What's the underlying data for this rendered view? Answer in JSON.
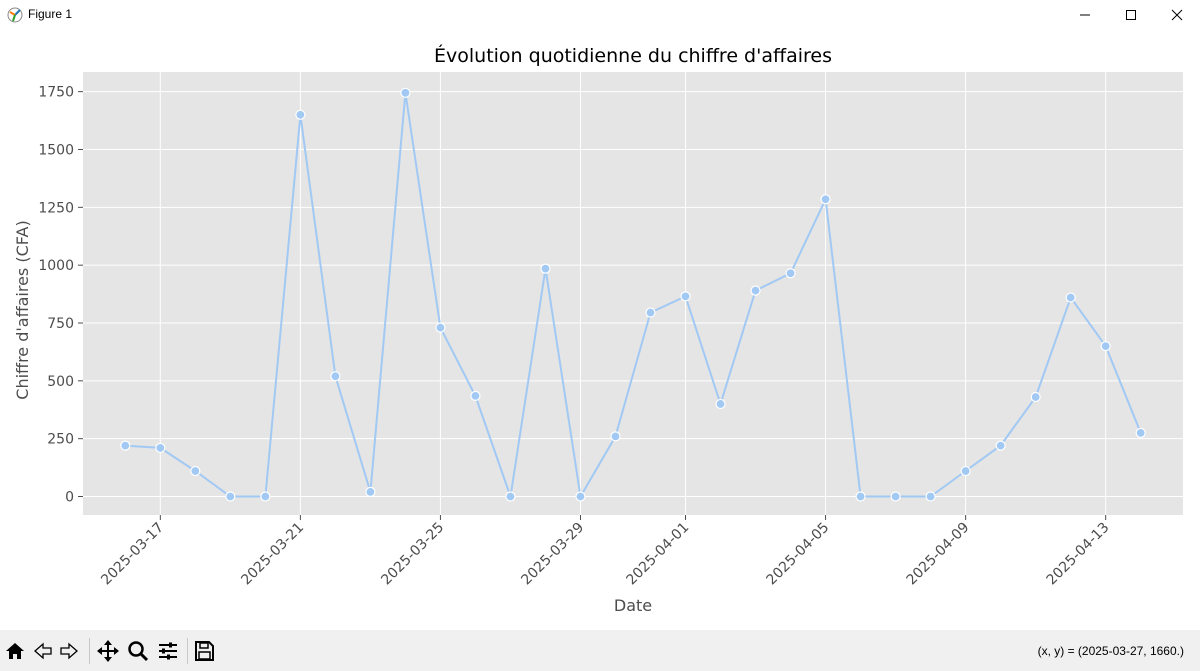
{
  "window": {
    "title": "Figure 1",
    "minimize_icon": "minimize-icon",
    "maximize_icon": "maximize-icon",
    "close_icon": "close-icon"
  },
  "toolbar": {
    "items": [
      "home-icon",
      "back-icon",
      "forward-icon",
      "pan-icon",
      "zoom-icon",
      "configure-subplots-icon",
      "save-icon"
    ],
    "coords_text": "(x, y) = (2025-03-27, 1660.)"
  },
  "colors": {
    "plot_bg": "#e5e5e5",
    "grid": "#ffffff",
    "line": "#a1c9f4",
    "text": "#4d4d4d"
  },
  "chart_data": {
    "type": "line",
    "title": "Évolution quotidienne du chiffre d'affaires",
    "xlabel": "Date",
    "ylabel": "Chiffre d'affaires (CFA)",
    "x": [
      "2025-03-16",
      "2025-03-17",
      "2025-03-18",
      "2025-03-19",
      "2025-03-20",
      "2025-03-21",
      "2025-03-22",
      "2025-03-23",
      "2025-03-24",
      "2025-03-25",
      "2025-03-26",
      "2025-03-27",
      "2025-03-28",
      "2025-03-29",
      "2025-03-30",
      "2025-03-31",
      "2025-04-01",
      "2025-04-02",
      "2025-04-03",
      "2025-04-04",
      "2025-04-05",
      "2025-04-06",
      "2025-04-07",
      "2025-04-08",
      "2025-04-09",
      "2025-04-10",
      "2025-04-11",
      "2025-04-12",
      "2025-04-13",
      "2025-04-14"
    ],
    "series": [
      {
        "name": "Chiffre d'affaires",
        "values": [
          220,
          210,
          110,
          0,
          0,
          1650,
          520,
          20,
          1745,
          730,
          435,
          0,
          985,
          0,
          260,
          795,
          865,
          400,
          890,
          965,
          1285,
          0,
          0,
          0,
          110,
          220,
          430,
          860,
          650,
          275
        ]
      }
    ],
    "xticks": [
      "2025-03-17",
      "2025-03-21",
      "2025-03-25",
      "2025-03-29",
      "2025-04-01",
      "2025-04-05",
      "2025-04-09",
      "2025-04-13"
    ],
    "yticks": [
      0,
      250,
      500,
      750,
      1000,
      1250,
      1500,
      1750
    ],
    "ylim": [
      -80,
      1835
    ],
    "xlim": [
      "2025-03-14T19:00",
      "2025-04-15T05:00"
    ],
    "grid": true,
    "marker": "circle"
  }
}
